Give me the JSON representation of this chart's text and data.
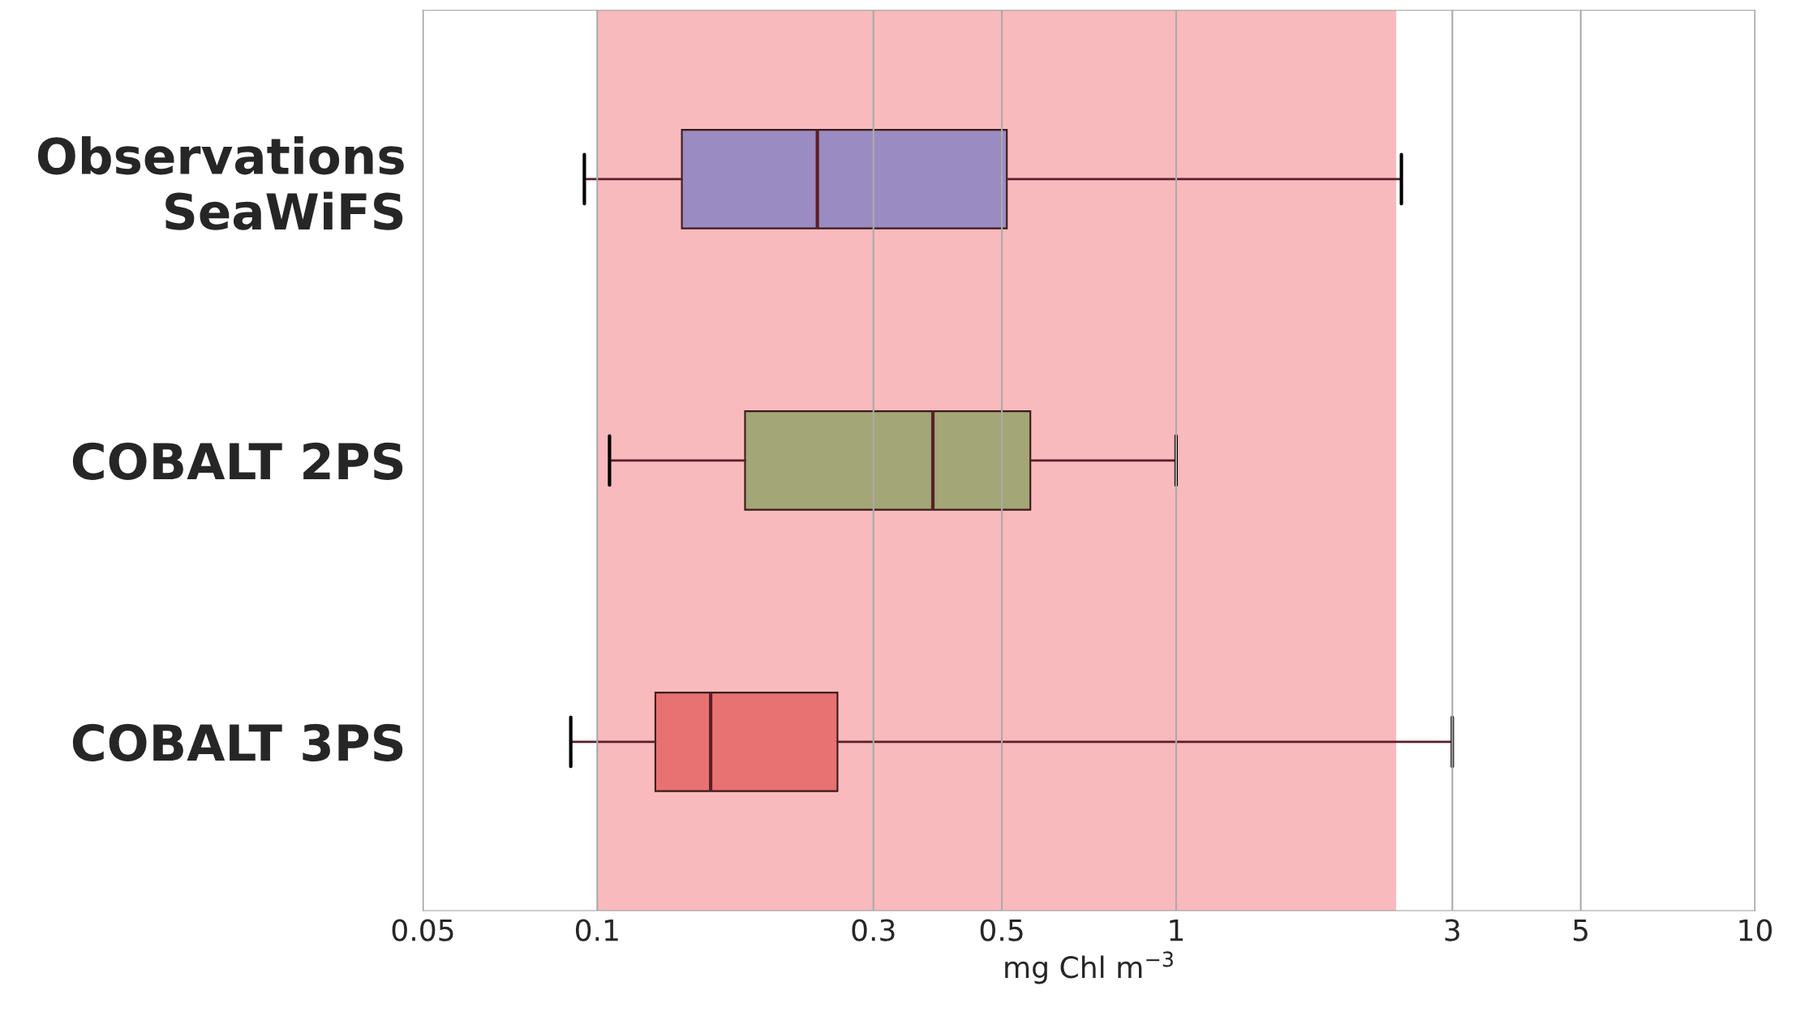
{
  "chart_data": {
    "type": "box",
    "orientation": "horizontal",
    "categories": [
      "Observations\nSeaWiFS",
      "COBALT 2PS",
      "COBALT 3PS"
    ],
    "colors": [
      "#9a8cc2",
      "#a3a676",
      "#e87272"
    ],
    "boxes": [
      {
        "low": 0.095,
        "q1": 0.14,
        "median": 0.24,
        "q3": 0.51,
        "high": 2.45
      },
      {
        "low": 0.105,
        "q1": 0.18,
        "median": 0.38,
        "q3": 0.56,
        "high": 1.0
      },
      {
        "low": 0.09,
        "q1": 0.126,
        "median": 0.157,
        "q3": 0.26,
        "high": 3.0
      }
    ],
    "xlabel": "mg Chl m$^{−3}$",
    "log": "x",
    "xlim": [
      0.05,
      10
    ],
    "xticks": [
      0.05,
      0.1,
      0.3,
      0.5,
      1,
      3,
      5,
      10
    ],
    "grid": "x",
    "bands": [
      {
        "axis": "x",
        "from": 0.1,
        "to": 2.4,
        "color": "#f7a9ad"
      }
    ]
  }
}
